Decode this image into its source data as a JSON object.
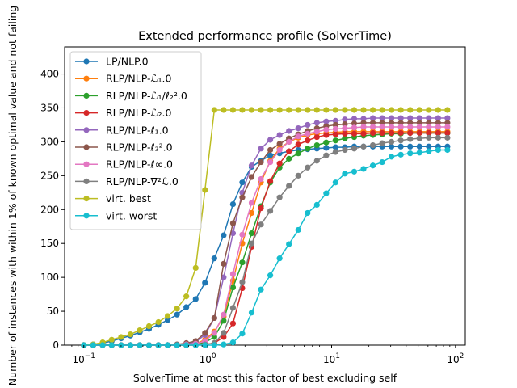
{
  "chart_data": {
    "type": "line",
    "title": "Extended performance profile (SolverTime)",
    "xlabel": "SolverTime at most this factor of best excluding self",
    "ylabel": "Number of instances with within 1% of known optimal value and not failing",
    "xscale": "log",
    "xlim": [
      0.07,
      120
    ],
    "ylim": [
      0,
      440
    ],
    "x_ticks": [
      {
        "value": 0.1,
        "base": "10",
        "exp": "−1"
      },
      {
        "value": 1,
        "base": "10",
        "exp": "0"
      },
      {
        "value": 10,
        "base": "10",
        "exp": "1"
      },
      {
        "value": 100,
        "base": "10",
        "exp": "2"
      }
    ],
    "y_ticks": [
      0,
      50,
      100,
      150,
      200,
      250,
      300,
      350,
      400
    ],
    "grid": false,
    "legend_position": "upper-left",
    "x": [
      0.1,
      0.119,
      0.142,
      0.168,
      0.2,
      0.238,
      0.283,
      0.336,
      0.4,
      0.475,
      0.565,
      0.672,
      0.8,
      0.951,
      1.131,
      1.345,
      1.6,
      1.902,
      2.262,
      2.69,
      3.2,
      3.805,
      4.525,
      5.381,
      6.4,
      7.61,
      9.05,
      10.76,
      12.8,
      15.22,
      18.1,
      21.53,
      25.6,
      30.44,
      36.2,
      43.05,
      51.2,
      60.89,
      72.4,
      86.1
    ],
    "series": [
      {
        "name": "LP/NLP.0",
        "color": "#1f77b4",
        "values": [
          0,
          1,
          3,
          6,
          10,
          14,
          19,
          24,
          30,
          37,
          45,
          56,
          68,
          92,
          128,
          162,
          208,
          240,
          263,
          272,
          280,
          283,
          286,
          288,
          289,
          290,
          291,
          292,
          292,
          293,
          293,
          293,
          293,
          293,
          293,
          293,
          293,
          293,
          293,
          293
        ]
      },
      {
        "name": "RLP/NLP-ℒ₁.0",
        "color": "#ff7f0e",
        "values": [
          0,
          0,
          0,
          0,
          0,
          0,
          0,
          0,
          0,
          0,
          0,
          0,
          2,
          8,
          20,
          42,
          95,
          150,
          195,
          240,
          272,
          290,
          300,
          306,
          310,
          312,
          313,
          314,
          315,
          315,
          315,
          315,
          315,
          315,
          315,
          315,
          315,
          315,
          315,
          315
        ]
      },
      {
        "name": "RLP/NLP-ℒ₁/ℓ₂².0",
        "color": "#2ca02c",
        "values": [
          0,
          0,
          0,
          0,
          0,
          0,
          0,
          0,
          0,
          0,
          0,
          0,
          1,
          4,
          12,
          36,
          85,
          122,
          165,
          205,
          240,
          262,
          275,
          283,
          290,
          295,
          299,
          302,
          305,
          307,
          309,
          310,
          311,
          312,
          312,
          313,
          313,
          313,
          313,
          313
        ]
      },
      {
        "name": "RLP/NLP-ℒ₂.0",
        "color": "#d62728",
        "values": [
          0,
          0,
          0,
          0,
          0,
          0,
          0,
          0,
          0,
          0,
          0,
          0,
          0,
          1,
          3,
          12,
          32,
          84,
          145,
          202,
          242,
          268,
          286,
          296,
          302,
          307,
          310,
          311,
          312,
          312,
          312,
          313,
          313,
          313,
          313,
          313,
          313,
          313,
          313,
          313
        ]
      },
      {
        "name": "RLP/NLP-ℓ₁.0",
        "color": "#9467bd",
        "values": [
          0,
          0,
          0,
          0,
          0,
          0,
          0,
          0,
          0,
          0,
          0,
          1,
          5,
          15,
          40,
          100,
          165,
          225,
          265,
          290,
          303,
          310,
          316,
          320,
          325,
          328,
          330,
          331,
          333,
          334,
          334,
          335,
          335,
          335,
          335,
          335,
          335,
          335,
          335,
          335
        ]
      },
      {
        "name": "RLP/NLP-ℓ₂².0",
        "color": "#8c564b",
        "values": [
          0,
          0,
          0,
          0,
          0,
          0,
          0,
          0,
          0,
          0,
          1,
          3,
          6,
          18,
          40,
          120,
          180,
          218,
          248,
          270,
          288,
          297,
          305,
          311,
          316,
          320,
          323,
          325,
          326,
          327,
          328,
          328,
          328,
          328,
          328,
          328,
          328,
          328,
          328,
          328
        ]
      },
      {
        "name": "RLP/NLP-ℓ∞.0",
        "color": "#e377c2",
        "values": [
          0,
          0,
          0,
          0,
          0,
          0,
          0,
          0,
          0,
          0,
          0,
          1,
          2,
          6,
          18,
          45,
          105,
          163,
          210,
          245,
          270,
          288,
          300,
          308,
          312,
          315,
          318,
          319,
          320,
          321,
          322,
          322,
          322,
          322,
          322,
          322,
          322,
          322,
          322,
          322
        ]
      },
      {
        "name": "RLP/NLP-∇²ℒ.0",
        "color": "#7f7f7f",
        "values": [
          0,
          0,
          0,
          0,
          0,
          0,
          0,
          0,
          0,
          0,
          0,
          0,
          0,
          1,
          3,
          18,
          55,
          93,
          150,
          178,
          198,
          218,
          235,
          250,
          262,
          272,
          280,
          285,
          288,
          290,
          293,
          295,
          298,
          300,
          302,
          304,
          305,
          306,
          306,
          306
        ]
      },
      {
        "name": "virt. best",
        "color": "#bcbd22",
        "values": [
          0,
          1,
          4,
          8,
          12,
          16,
          22,
          28,
          34,
          43,
          54,
          72,
          114,
          229,
          347,
          347,
          347,
          347,
          347,
          347,
          347,
          347,
          347,
          347,
          347,
          347,
          347,
          347,
          347,
          347,
          347,
          347,
          347,
          347,
          347,
          347,
          347,
          347,
          347,
          347
        ]
      },
      {
        "name": "virt. worst",
        "color": "#17becf",
        "values": [
          0,
          0,
          0,
          0,
          0,
          0,
          0,
          0,
          0,
          0,
          0,
          0,
          0,
          0,
          0,
          1,
          4,
          17,
          48,
          82,
          103,
          128,
          149,
          170,
          195,
          207,
          224,
          240,
          253,
          256,
          260,
          265,
          270,
          278,
          281,
          283,
          284,
          286,
          288,
          288
        ]
      }
    ]
  }
}
